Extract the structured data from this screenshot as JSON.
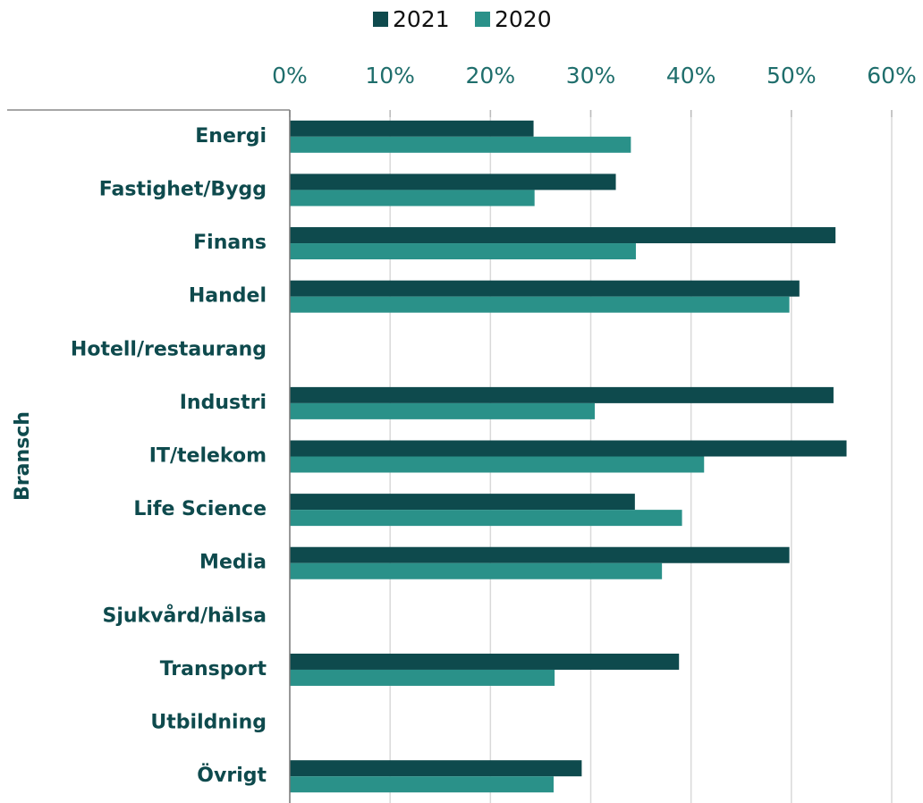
{
  "chart_data": {
    "type": "hbar",
    "y_axis_label": "Bransch",
    "categories": [
      "Energi",
      "Fastighet/Bygg",
      "Finans",
      "Handel",
      "Hotell/restaurang",
      "Industri",
      "IT/telekom",
      "Life Science",
      "Media",
      "Sjukvård/hälsa",
      "Transport",
      "Utbildning",
      "Övrigt"
    ],
    "series": [
      {
        "name": "2021",
        "color": "#0e4a4d",
        "values": [
          24.3,
          32.5,
          54.4,
          50.8,
          null,
          54.2,
          55.5,
          34.4,
          49.8,
          null,
          38.8,
          null,
          29.1
        ]
      },
      {
        "name": "2020",
        "color": "#2a9189",
        "values": [
          34.0,
          24.4,
          34.5,
          49.8,
          null,
          30.4,
          41.3,
          39.1,
          37.1,
          null,
          26.4,
          null,
          26.3
        ]
      }
    ],
    "xlim": [
      0,
      60
    ],
    "xticks": [
      {
        "value": 0,
        "label": "0%"
      },
      {
        "value": 10,
        "label": "10%"
      },
      {
        "value": 20,
        "label": "20%"
      },
      {
        "value": 30,
        "label": "30%"
      },
      {
        "value": 40,
        "label": "40%"
      },
      {
        "value": 50,
        "label": "50%"
      },
      {
        "value": 60,
        "label": "60%"
      }
    ],
    "grid": true,
    "legend": "top"
  }
}
